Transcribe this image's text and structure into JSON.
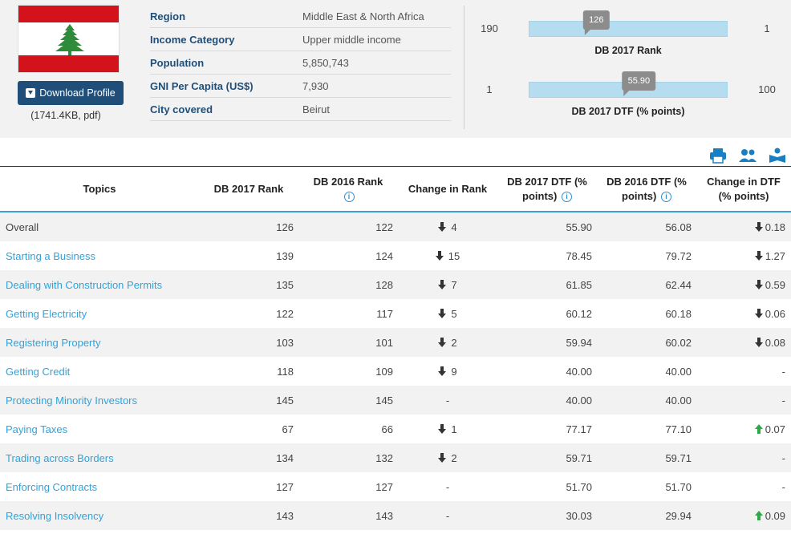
{
  "flag": {
    "colors": {
      "red": "#d4121b",
      "white": "#ffffff",
      "cedar": "#2e8b3a"
    }
  },
  "download": {
    "label": "Download Profile",
    "size": "(1741.4KB, pdf)"
  },
  "info": [
    {
      "key": "Region",
      "value": "Middle East & North Africa"
    },
    {
      "key": "Income Category",
      "value": "Upper middle income"
    },
    {
      "key": "Population",
      "value": "5,850,743"
    },
    {
      "key": "GNI Per Capita (US$)",
      "value": "7,930"
    },
    {
      "key": "City covered",
      "value": "Beirut"
    }
  ],
  "gauges": {
    "rank": {
      "low": "190",
      "high": "1",
      "value": "126",
      "caption": "DB 2017 Rank"
    },
    "dtf": {
      "low": "1",
      "high": "100",
      "value": "55.90",
      "caption": "DB 2017 DTF (% points)"
    }
  },
  "tools": [
    "print-icon",
    "users-icon",
    "reader-icon"
  ],
  "table": {
    "headers": [
      "Topics",
      "DB 2017 Rank",
      "DB 2016 Rank",
      "Change in Rank",
      "DB 2017 DTF (% points)",
      "DB 2016 DTF (% points)",
      "Change in DTF (% points)"
    ],
    "rows": [
      {
        "topic": "Overall",
        "link": false,
        "r17": "126",
        "r16": "122",
        "chg": "4",
        "chgDir": "down",
        "d17": "55.90",
        "d16": "56.08",
        "dchg": "0.18",
        "dchgDir": "down"
      },
      {
        "topic": "Starting a Business",
        "link": true,
        "r17": "139",
        "r16": "124",
        "chg": "15",
        "chgDir": "down",
        "d17": "78.45",
        "d16": "79.72",
        "dchg": "1.27",
        "dchgDir": "down"
      },
      {
        "topic": "Dealing with Construction Permits",
        "link": true,
        "r17": "135",
        "r16": "128",
        "chg": "7",
        "chgDir": "down",
        "d17": "61.85",
        "d16": "62.44",
        "dchg": "0.59",
        "dchgDir": "down"
      },
      {
        "topic": "Getting Electricity",
        "link": true,
        "r17": "122",
        "r16": "117",
        "chg": "5",
        "chgDir": "down",
        "d17": "60.12",
        "d16": "60.18",
        "dchg": "0.06",
        "dchgDir": "down"
      },
      {
        "topic": "Registering Property",
        "link": true,
        "r17": "103",
        "r16": "101",
        "chg": "2",
        "chgDir": "down",
        "d17": "59.94",
        "d16": "60.02",
        "dchg": "0.08",
        "dchgDir": "down"
      },
      {
        "topic": "Getting Credit",
        "link": true,
        "r17": "118",
        "r16": "109",
        "chg": "9",
        "chgDir": "down",
        "d17": "40.00",
        "d16": "40.00",
        "dchg": "-",
        "dchgDir": "none"
      },
      {
        "topic": "Protecting Minority Investors",
        "link": true,
        "r17": "145",
        "r16": "145",
        "chg": "-",
        "chgDir": "none",
        "d17": "40.00",
        "d16": "40.00",
        "dchg": "-",
        "dchgDir": "none"
      },
      {
        "topic": "Paying Taxes",
        "link": true,
        "r17": "67",
        "r16": "66",
        "chg": "1",
        "chgDir": "down",
        "d17": "77.17",
        "d16": "77.10",
        "dchg": "0.07",
        "dchgDir": "up"
      },
      {
        "topic": "Trading across Borders",
        "link": true,
        "r17": "134",
        "r16": "132",
        "chg": "2",
        "chgDir": "down",
        "d17": "59.71",
        "d16": "59.71",
        "dchg": "-",
        "dchgDir": "none"
      },
      {
        "topic": "Enforcing Contracts",
        "link": true,
        "r17": "127",
        "r16": "127",
        "chg": "-",
        "chgDir": "none",
        "d17": "51.70",
        "d16": "51.70",
        "dchg": "-",
        "dchgDir": "none"
      },
      {
        "topic": "Resolving Insolvency",
        "link": true,
        "r17": "143",
        "r16": "143",
        "chg": "-",
        "chgDir": "none",
        "d17": "30.03",
        "d16": "29.94",
        "dchg": "0.09",
        "dchgDir": "up"
      }
    ]
  },
  "colors": {
    "navy": "#1f4e79",
    "link": "#2fa3dc",
    "accent": "#3aa1d8",
    "up": "#2ea84a",
    "gaugeBar": "#b5ddef",
    "marker": "#8c8c8c"
  }
}
